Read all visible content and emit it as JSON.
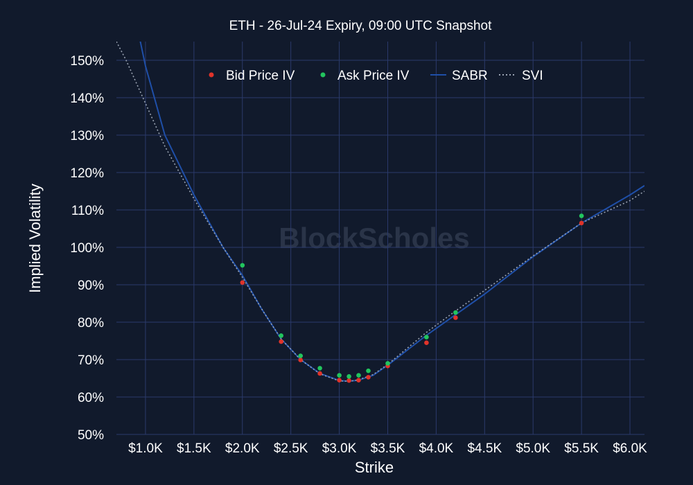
{
  "chart_data": {
    "type": "scatter",
    "title": "ETH - 26-Jul-24 Expiry, 09:00 UTC Snapshot",
    "xlabel": "Strike",
    "ylabel": "Implied Volatility",
    "watermark": "BlockScholes",
    "xlim": [
      700,
      6150
    ],
    "ylim": [
      50,
      155
    ],
    "x_ticks": [
      {
        "value": 1000,
        "label": "$1.0K"
      },
      {
        "value": 1500,
        "label": "$1.5K"
      },
      {
        "value": 2000,
        "label": "$2.0K"
      },
      {
        "value": 2500,
        "label": "$2.5K"
      },
      {
        "value": 3000,
        "label": "$3.0K"
      },
      {
        "value": 3500,
        "label": "$3.5K"
      },
      {
        "value": 4000,
        "label": "$4.0K"
      },
      {
        "value": 4500,
        "label": "$4.5K"
      },
      {
        "value": 5000,
        "label": "$5.0K"
      },
      {
        "value": 5500,
        "label": "$5.5K"
      },
      {
        "value": 6000,
        "label": "$6.0K"
      }
    ],
    "y_ticks": [
      {
        "value": 50,
        "label": "50%"
      },
      {
        "value": 60,
        "label": "60%"
      },
      {
        "value": 70,
        "label": "70%"
      },
      {
        "value": 80,
        "label": "80%"
      },
      {
        "value": 90,
        "label": "90%"
      },
      {
        "value": 100,
        "label": "100%"
      },
      {
        "value": 110,
        "label": "110%"
      },
      {
        "value": 120,
        "label": "120%"
      },
      {
        "value": 130,
        "label": "130%"
      },
      {
        "value": 140,
        "label": "140%"
      },
      {
        "value": 150,
        "label": "150%"
      }
    ],
    "grid": true,
    "legend_position": "top-center",
    "colors": {
      "background": "#111a2c",
      "grid": "#2b3a6b",
      "bid": "#e0332a",
      "ask": "#22c55e",
      "sabr": "#1f4fa8",
      "svi": "#9aa3b2"
    },
    "series": [
      {
        "name": "Bid Price IV",
        "kind": "markers",
        "points": [
          {
            "x": 2000,
            "y": 90.6
          },
          {
            "x": 2400,
            "y": 74.8
          },
          {
            "x": 2600,
            "y": 69.9
          },
          {
            "x": 2800,
            "y": 66.3
          },
          {
            "x": 3000,
            "y": 64.5
          },
          {
            "x": 3100,
            "y": 64.4
          },
          {
            "x": 3200,
            "y": 64.5
          },
          {
            "x": 3300,
            "y": 65.3
          },
          {
            "x": 3500,
            "y": 68.3
          },
          {
            "x": 3900,
            "y": 74.5
          },
          {
            "x": 4200,
            "y": 81.2
          },
          {
            "x": 5500,
            "y": 106.5
          }
        ]
      },
      {
        "name": "Ask Price IV",
        "kind": "markers",
        "points": [
          {
            "x": 2000,
            "y": 95.2
          },
          {
            "x": 2400,
            "y": 76.4
          },
          {
            "x": 2600,
            "y": 71.0
          },
          {
            "x": 2800,
            "y": 67.7
          },
          {
            "x": 3000,
            "y": 65.8
          },
          {
            "x": 3100,
            "y": 65.5
          },
          {
            "x": 3200,
            "y": 65.8
          },
          {
            "x": 3300,
            "y": 67.0
          },
          {
            "x": 3500,
            "y": 69.0
          },
          {
            "x": 3900,
            "y": 76.0
          },
          {
            "x": 4200,
            "y": 82.6
          },
          {
            "x": 5500,
            "y": 108.4
          }
        ]
      },
      {
        "name": "SABR",
        "kind": "line",
        "points": [
          {
            "x": 930,
            "y": 157
          },
          {
            "x": 1000,
            "y": 148.5
          },
          {
            "x": 1200,
            "y": 130
          },
          {
            "x": 1500,
            "y": 114
          },
          {
            "x": 1800,
            "y": 100
          },
          {
            "x": 2000,
            "y": 92.5
          },
          {
            "x": 2200,
            "y": 83.5
          },
          {
            "x": 2400,
            "y": 75.5
          },
          {
            "x": 2600,
            "y": 70
          },
          {
            "x": 2800,
            "y": 66.3
          },
          {
            "x": 3000,
            "y": 64.4
          },
          {
            "x": 3100,
            "y": 64.2
          },
          {
            "x": 3200,
            "y": 64.5
          },
          {
            "x": 3350,
            "y": 65.8
          },
          {
            "x": 3500,
            "y": 68.5
          },
          {
            "x": 3700,
            "y": 72.5
          },
          {
            "x": 3900,
            "y": 76.5
          },
          {
            "x": 4200,
            "y": 82
          },
          {
            "x": 4500,
            "y": 87.5
          },
          {
            "x": 5000,
            "y": 97.5
          },
          {
            "x": 5500,
            "y": 106.5
          },
          {
            "x": 6000,
            "y": 114
          },
          {
            "x": 6150,
            "y": 116.5
          }
        ]
      },
      {
        "name": "SVI",
        "kind": "line",
        "points": [
          {
            "x": 700,
            "y": 155
          },
          {
            "x": 800,
            "y": 150
          },
          {
            "x": 1000,
            "y": 138.5
          },
          {
            "x": 1200,
            "y": 127
          },
          {
            "x": 1500,
            "y": 113
          },
          {
            "x": 1800,
            "y": 100
          },
          {
            "x": 2000,
            "y": 92
          },
          {
            "x": 2200,
            "y": 83.5
          },
          {
            "x": 2400,
            "y": 75.5
          },
          {
            "x": 2600,
            "y": 70
          },
          {
            "x": 2800,
            "y": 66.2
          },
          {
            "x": 3000,
            "y": 64.3
          },
          {
            "x": 3100,
            "y": 64.2
          },
          {
            "x": 3200,
            "y": 64.6
          },
          {
            "x": 3350,
            "y": 66
          },
          {
            "x": 3500,
            "y": 68.7
          },
          {
            "x": 3700,
            "y": 73
          },
          {
            "x": 3900,
            "y": 77.3
          },
          {
            "x": 4200,
            "y": 83
          },
          {
            "x": 4500,
            "y": 88.5
          },
          {
            "x": 5000,
            "y": 97.7
          },
          {
            "x": 5500,
            "y": 106.5
          },
          {
            "x": 6000,
            "y": 112.5
          },
          {
            "x": 6150,
            "y": 115
          }
        ]
      }
    ]
  }
}
